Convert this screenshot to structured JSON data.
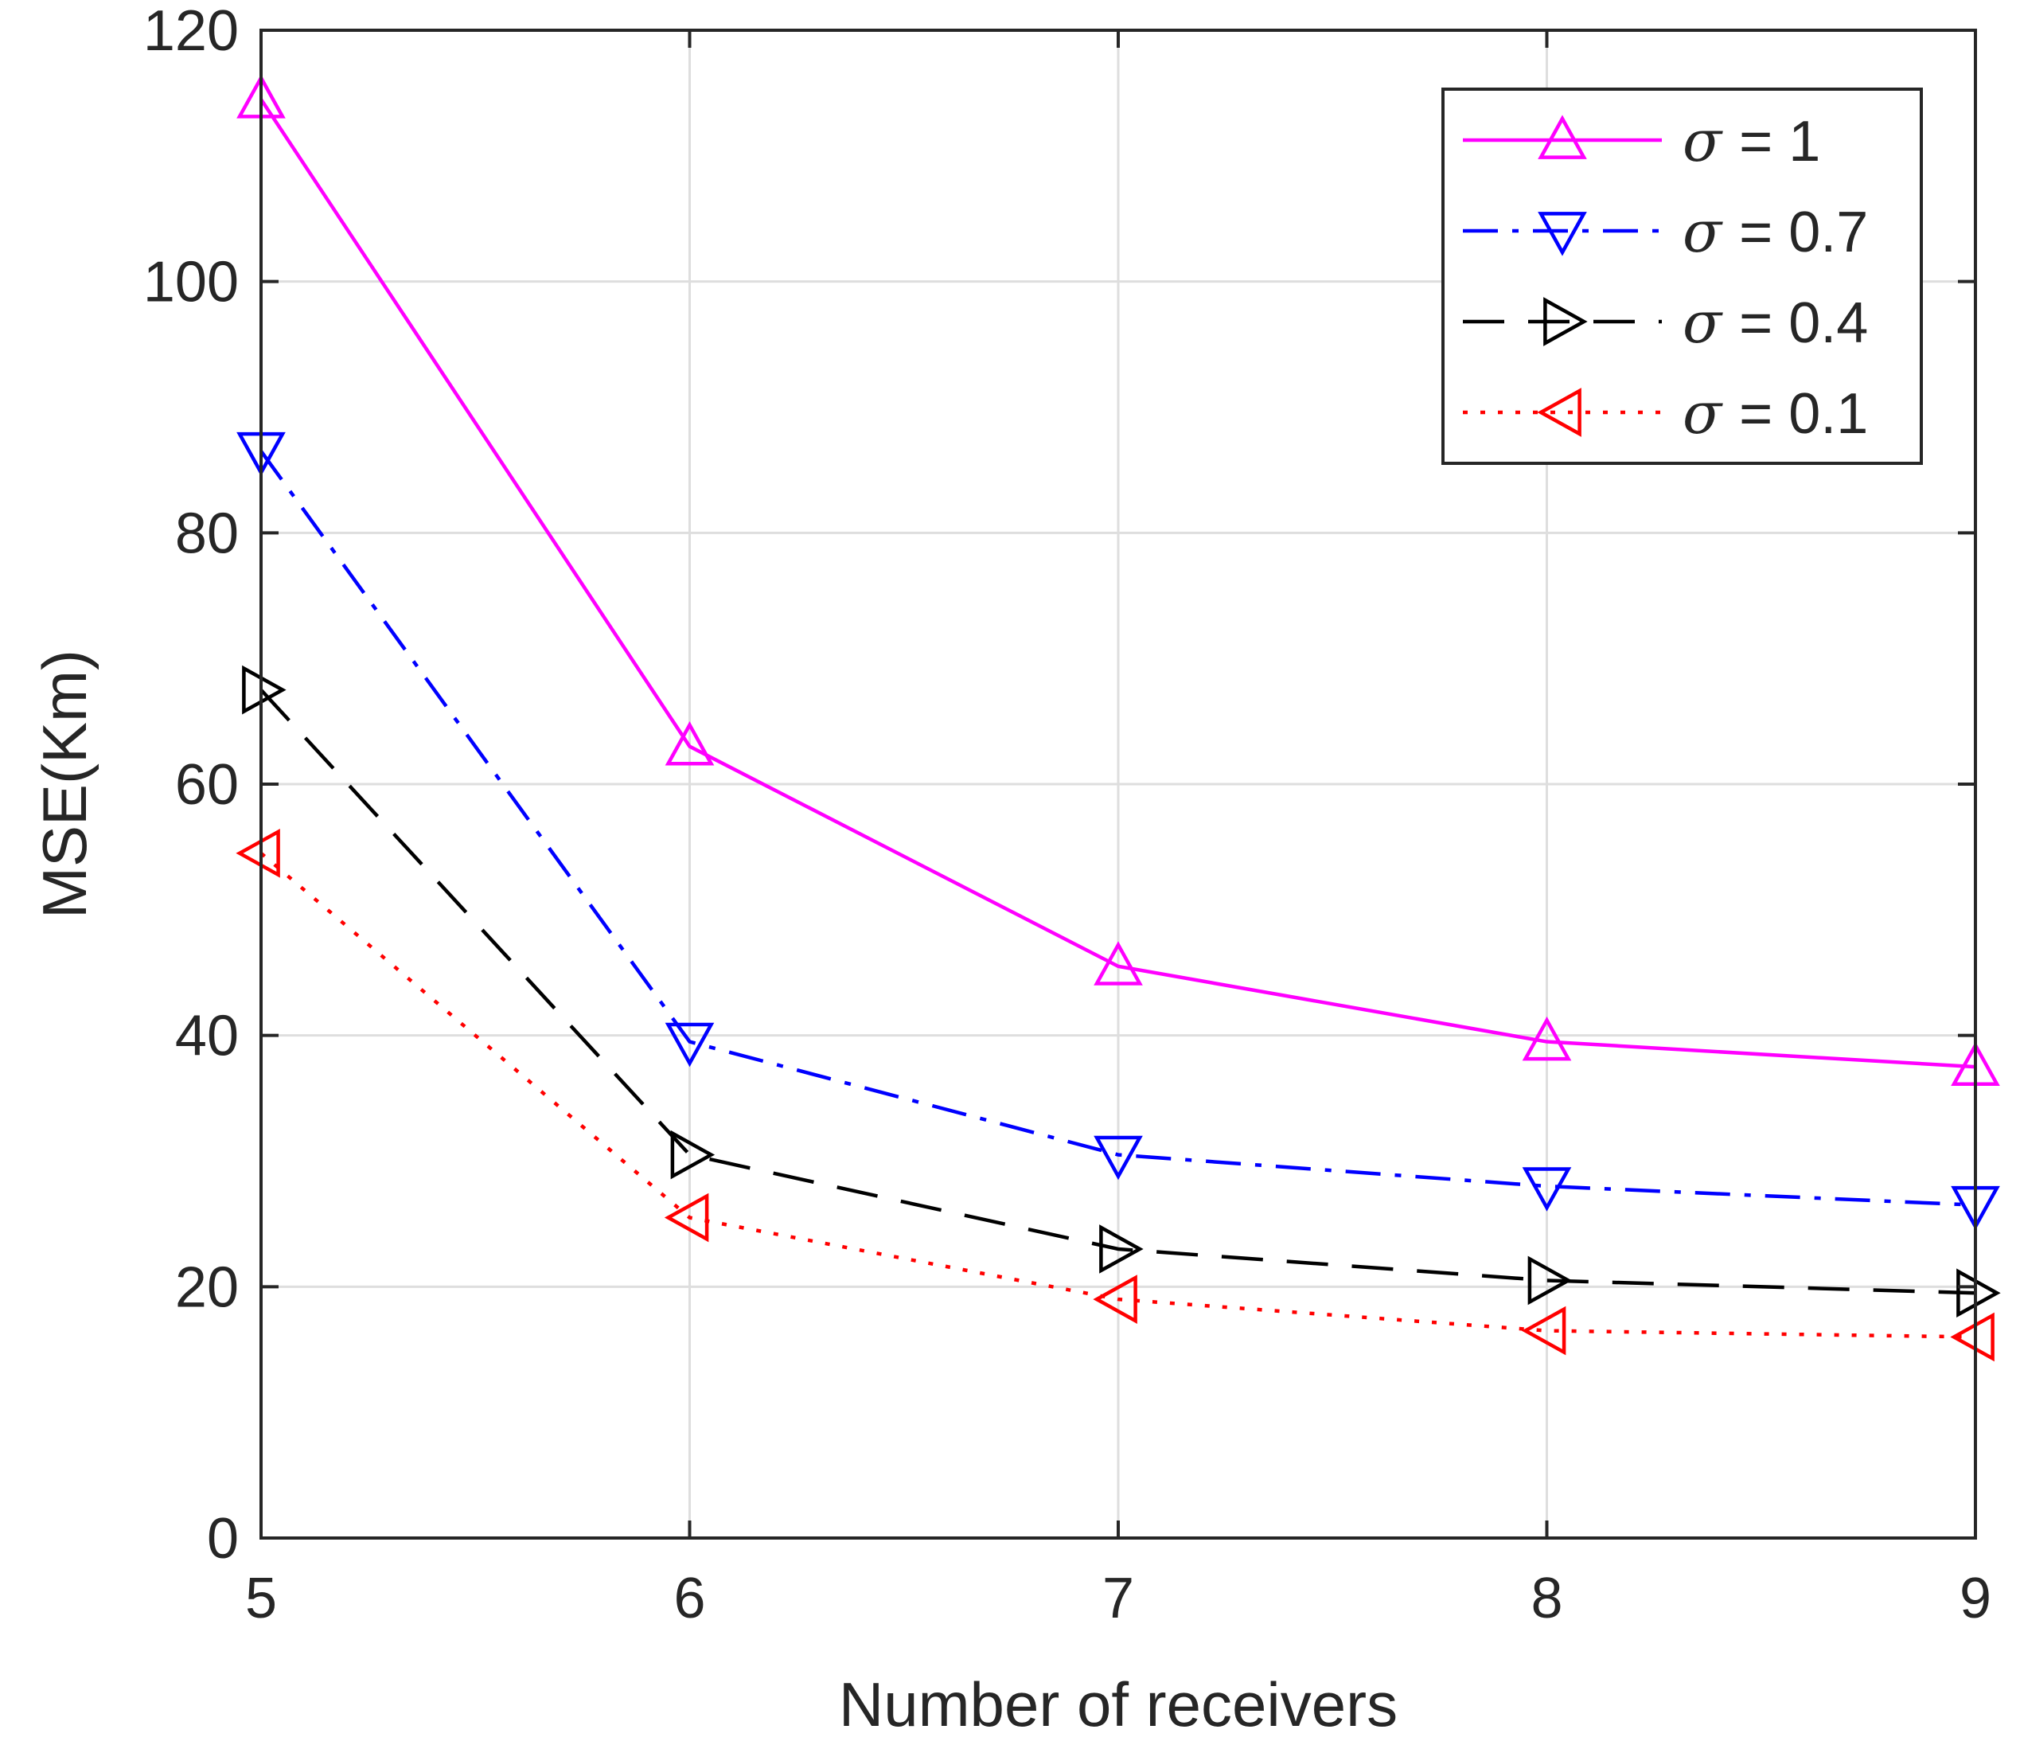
{
  "chart_data": {
    "type": "line",
    "title": "",
    "xlabel": "Number of receivers",
    "ylabel": "MSE(Km)",
    "x": [
      5,
      6,
      7,
      8,
      9
    ],
    "xlim": [
      5,
      9
    ],
    "ylim": [
      0,
      120
    ],
    "xticks": [
      "5",
      "6",
      "7",
      "8",
      "9"
    ],
    "yticks": [
      "0",
      "20",
      "40",
      "60",
      "80",
      "100",
      "120"
    ],
    "grid": true,
    "legend_position": "top-right",
    "series": [
      {
        "name": "σ = 1",
        "sigma_symbol": "σ",
        "sigma_value": "= 1",
        "color": "#ff00ff",
        "dash": "solid",
        "marker": "triangle-up",
        "values": [
          114.5,
          63,
          45.5,
          39.5,
          37.5
        ]
      },
      {
        "name": "σ = 0.7",
        "sigma_symbol": "σ",
        "sigma_value": "= 0.7",
        "color": "#0000ff",
        "dash": "dashdot",
        "marker": "triangle-down",
        "values": [
          86.5,
          39.5,
          30.5,
          28,
          26.5
        ]
      },
      {
        "name": "σ = 0.4",
        "sigma_symbol": "σ",
        "sigma_value": "= 0.4",
        "color": "#000000",
        "dash": "dashed",
        "marker": "triangle-right",
        "values": [
          67.5,
          30.5,
          23,
          20.5,
          19.5
        ]
      },
      {
        "name": "σ = 0.1",
        "sigma_symbol": "σ",
        "sigma_value": "= 0.1",
        "color": "#ff0000",
        "dash": "dotted",
        "marker": "triangle-left",
        "values": [
          54.5,
          25.5,
          19,
          16.5,
          16
        ]
      }
    ]
  }
}
